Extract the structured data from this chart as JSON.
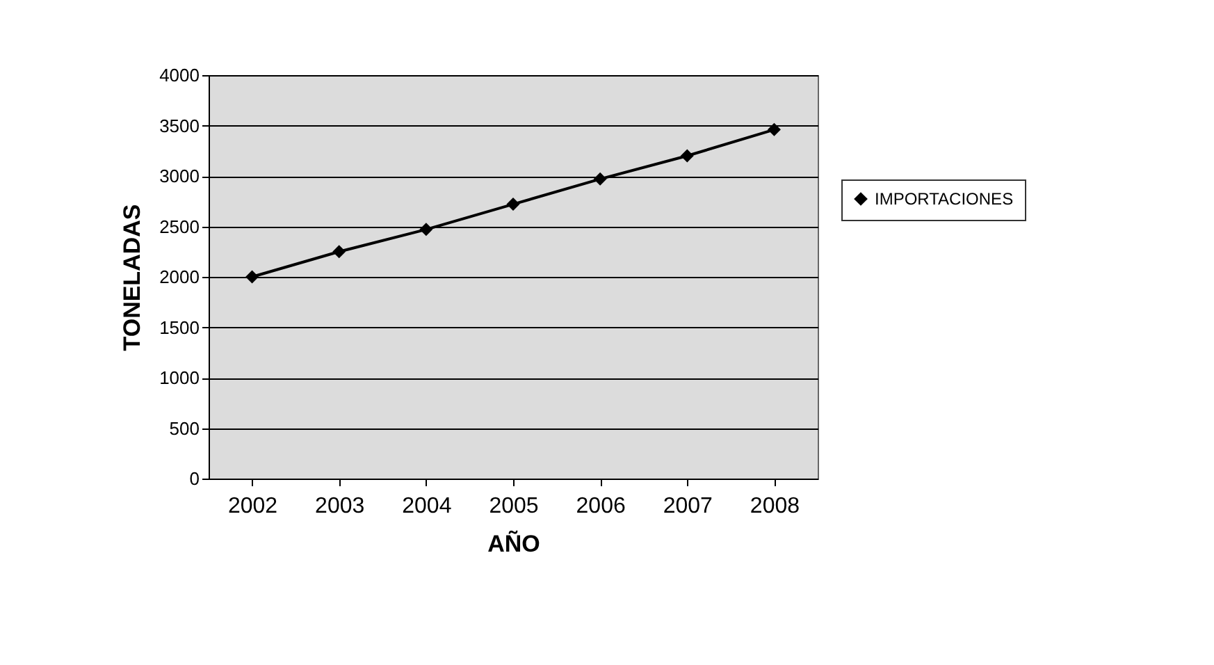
{
  "chart_data": {
    "type": "line",
    "xlabel": "AÑO",
    "ylabel": "TONELADAS",
    "categories": [
      "2002",
      "2003",
      "2004",
      "2005",
      "2006",
      "2007",
      "2008"
    ],
    "series": [
      {
        "name": "IMPORTACIONES",
        "color": "#000000",
        "values": [
          2000,
          2250,
          2470,
          2720,
          2970,
          3200,
          3460
        ]
      }
    ],
    "ylim": [
      0,
      4000
    ],
    "yticks": [
      0,
      500,
      1000,
      1500,
      2000,
      2500,
      3000,
      3500,
      4000
    ],
    "grid": "y",
    "legend": "right",
    "marker": "diamond",
    "line_style": "solid"
  }
}
